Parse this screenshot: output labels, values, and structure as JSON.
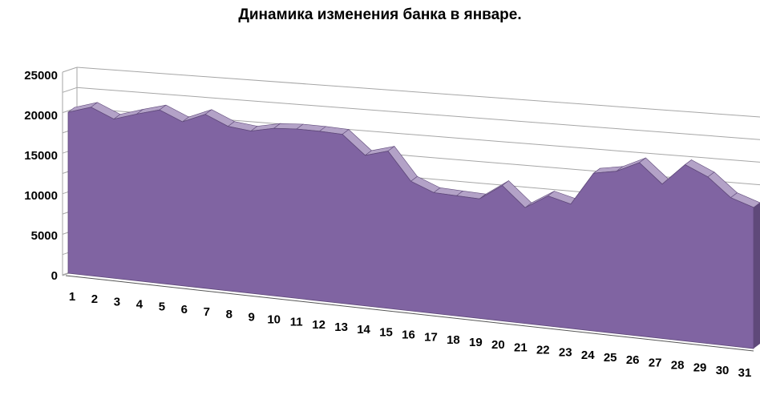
{
  "chart_data": {
    "type": "area",
    "title": "Динамика изменения банка в январе.",
    "xlabel": "",
    "ylabel": "",
    "categories": [
      "1",
      "2",
      "3",
      "4",
      "5",
      "6",
      "7",
      "8",
      "9",
      "10",
      "11",
      "12",
      "13",
      "14",
      "15",
      "16",
      "17",
      "18",
      "19",
      "20",
      "21",
      "22",
      "23",
      "24",
      "25",
      "26",
      "27",
      "28",
      "29",
      "30",
      "31"
    ],
    "series": [
      {
        "values": [
          20100,
          21000,
          19800,
          20700,
          21500,
          20300,
          21500,
          20300,
          20000,
          20600,
          20800,
          20800,
          20700,
          18400,
          19200,
          15800,
          14700,
          14600,
          14500,
          16400,
          14000,
          15700,
          15000,
          19000,
          19500,
          20800,
          18500,
          21100,
          19900,
          17700,
          16800
        ]
      }
    ],
    "ylim": [
      0,
      25000
    ],
    "yticks": [
      "0",
      "5000",
      "10000",
      "15000",
      "20000",
      "25000"
    ],
    "grid": true,
    "legend": "none",
    "colors": {
      "area_face": "#8064a2",
      "area_top": "#b3a2c7",
      "area_edge": "#5f497a",
      "grid": "#a6a6a6"
    }
  }
}
